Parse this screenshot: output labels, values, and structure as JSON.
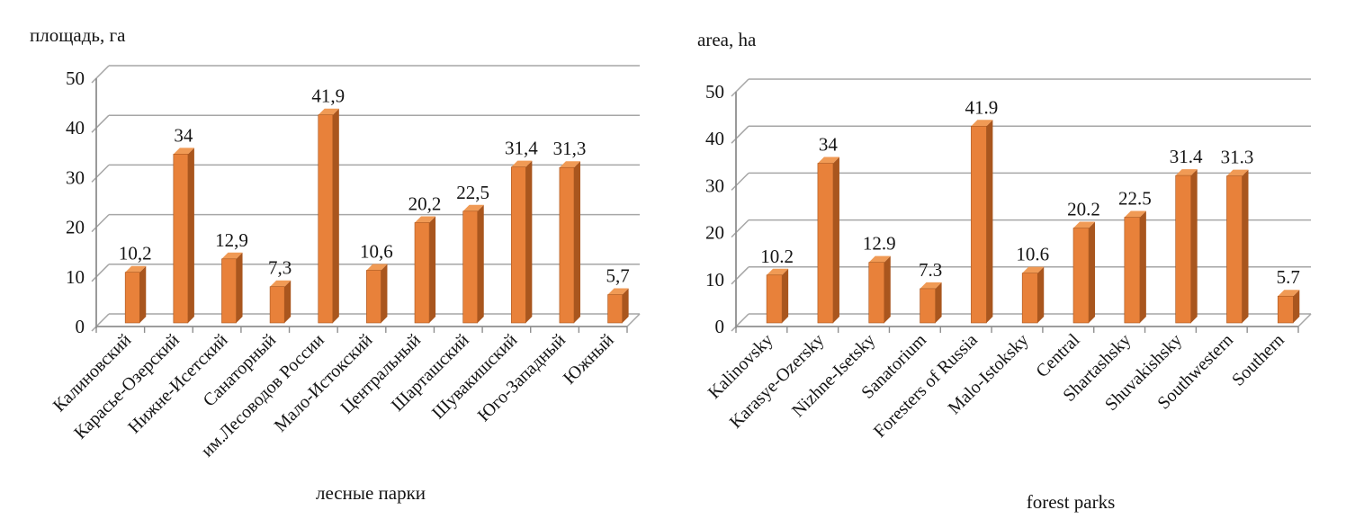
{
  "chart_data": [
    {
      "type": "bar",
      "title": "площадь, га",
      "xlabel": "лесные парки",
      "ylabel": "",
      "categories": [
        "Калиновский",
        "Карасье-Озерский",
        "Нижне-Исетский",
        "Санаторный",
        "им.Лесоводов России",
        "Мало-Истокский",
        "Центральный",
        "Шарташский",
        "Шувакишский",
        "Юго-Западный",
        "Южный"
      ],
      "values": [
        10.2,
        34,
        12.9,
        7.3,
        41.9,
        10.6,
        20.2,
        22.5,
        31.4,
        31.3,
        5.7
      ],
      "value_labels": [
        "10,2",
        "34",
        "12,9",
        "7,3",
        "41,9",
        "10,6",
        "20,2",
        "22,5",
        "31,4",
        "31,3",
        "5,7"
      ],
      "ylim": [
        0,
        50
      ],
      "yticks": [
        0,
        10,
        20,
        30,
        40,
        50
      ],
      "grid": true,
      "legend": "none",
      "style": "3d-column",
      "colors": {
        "bar_front": "#E8813A",
        "bar_top": "#F09A55",
        "bar_side": "#A9561E",
        "grid": "#A6A6A6",
        "axis": "#8F8F8F",
        "text": "#141414"
      }
    },
    {
      "type": "bar",
      "title": "area, ha",
      "xlabel": "forest parks",
      "ylabel": "",
      "categories": [
        "Kalinovsky",
        "Karasye-Ozersky",
        "Nizhne-Isetsky",
        "Sanatorium",
        "Foresters of Russia",
        "Malo-Istoksky",
        "Central",
        "Shartashsky",
        "Shuvakishsky",
        "Southwestern",
        "Southern"
      ],
      "values": [
        10.2,
        34,
        12.9,
        7.3,
        41.9,
        10.6,
        20.2,
        22.5,
        31.4,
        31.3,
        5.7
      ],
      "value_labels": [
        "10.2",
        "34",
        "12.9",
        "7.3",
        "41.9",
        "10.6",
        "20.2",
        "22.5",
        "31.4",
        "31.3",
        "5.7"
      ],
      "ylim": [
        0,
        50
      ],
      "yticks": [
        0,
        10,
        20,
        30,
        40,
        50
      ],
      "grid": true,
      "legend": "none",
      "style": "3d-column",
      "colors": {
        "bar_front": "#E8813A",
        "bar_top": "#F09A55",
        "bar_side": "#A9561E",
        "grid": "#A6A6A6",
        "axis": "#8F8F8F",
        "text": "#141414"
      }
    }
  ]
}
